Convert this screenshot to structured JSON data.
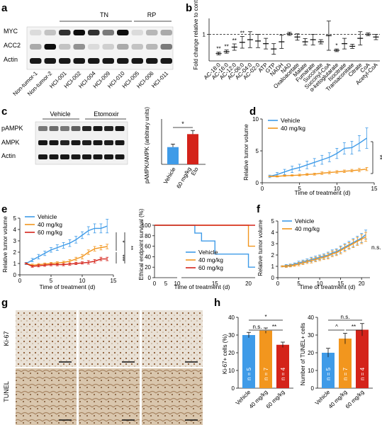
{
  "panels": {
    "a": {
      "letter": "a",
      "groups": [
        "TN",
        "RP"
      ],
      "rows": [
        "MYC",
        "ACC2",
        "Actin"
      ],
      "samples": [
        "Non-tumor-1",
        "Non-tumor-2",
        "HCI-001",
        "HCI-002",
        "HCI-004",
        "HCI-009",
        "HCI-010",
        "HCI-005",
        "HCI-006",
        "HCI-011"
      ]
    },
    "b": {
      "letter": "b",
      "ylabel": "Fold change relative to control",
      "ytick": "1",
      "categories": [
        "AC-18:0",
        "AC-16:0",
        "AC-12:0",
        "AC-06:0",
        "AC-04:0",
        "AC-02:0",
        "ATP",
        "GTP",
        "NADH",
        "NAD",
        "Oxaloacetate",
        "Malate",
        "Fumarate",
        "Succinate",
        "Succinyl-CoA",
        "α-ketoglutarate",
        "Isocitrate",
        "Transaconitate",
        "Citrate",
        "CoA",
        "Acetyl-CoA"
      ],
      "stars": [
        {
          "cat": 0,
          "text": "**"
        },
        {
          "cat": 1,
          "text": "**"
        },
        {
          "cat": 2,
          "text": "**"
        },
        {
          "cat": 3,
          "text": "**"
        },
        {
          "cat": 15,
          "text": "*"
        }
      ]
    },
    "c": {
      "letter": "c",
      "groups": [
        "Vehicle",
        "Etomoxir"
      ],
      "rows": [
        "pAMPK",
        "AMPK",
        "Actin"
      ],
      "ylabel": "pAMPK/AMPK (arbitrary units)",
      "sig": "*",
      "bar_labels": [
        "Vehicle",
        "60 mg/kg Eto"
      ]
    },
    "d": {
      "letter": "d",
      "ylabel": "Relative tumor volume",
      "xlabel": "Time of treatment (d)",
      "sig": "**",
      "legend": [
        "Vehicle",
        "40 mg/kg"
      ]
    },
    "e": {
      "letter": "e",
      "ylabel": "Relative tumor volume",
      "xlabel": "Time of treatment (d)",
      "sig": [
        "*",
        "***",
        "**"
      ],
      "legend": [
        "Vehicle",
        "40 mg/kg",
        "60 mg/kg"
      ],
      "surv_ylabel": "Ethical endpoint survival (%)",
      "surv_xlabel": "Time of treatment (d)"
    },
    "f": {
      "letter": "f",
      "ylabel": "Relative tumor volume",
      "xlabel": "Time of treatment (d)",
      "sig": "n.s.",
      "legend": [
        "Vehicle",
        "40 mg/kg"
      ]
    },
    "g": {
      "letter": "g",
      "rows": [
        "Ki-67",
        "TUNEL"
      ]
    },
    "h": {
      "letter": "h",
      "ki_ylabel": "Ki-67+ cells (%)",
      "tunel_ylabel": "Number of TUNEL+ cells",
      "groups": [
        "Vehicle",
        "40 mg/kg",
        "60 mg/kg"
      ],
      "ki_n": [
        "n = 5",
        "n = 7",
        "n = 4"
      ],
      "tunel_n": [
        "n = 5",
        "n = 7",
        "n = 4"
      ],
      "ki_sig": [
        "n.s.",
        "*",
        "**"
      ],
      "tunel_sig": [
        "^",
        "n.s.",
        "**"
      ]
    }
  },
  "colors": {
    "blue": "#3f9be8",
    "orange": "#f2961e",
    "red": "#d4231a"
  },
  "chart_data": [
    {
      "type": "bar",
      "panel": "b",
      "categories": [
        "AC-18:0",
        "AC-16:0",
        "AC-12:0",
        "AC-06:0",
        "AC-04:0",
        "AC-02:0",
        "ATP",
        "GTP",
        "NADH",
        "NAD",
        "Oxaloacetate",
        "Malate",
        "Fumarate",
        "Succinate",
        "Succinyl-CoA",
        "α-ketoglutarate",
        "Isocitrate",
        "Transaconitate",
        "Citrate",
        "CoA",
        "Acetyl-CoA"
      ],
      "values": [
        0.28,
        0.35,
        0.52,
        0.7,
        0.8,
        0.75,
        0.65,
        0.45,
        0.72,
        1.02,
        0.9,
        0.72,
        0.8,
        0.72,
        0.95,
        0.4,
        0.65,
        0.55,
        0.85,
        1.0,
        0.9
      ],
      "errors": [
        0.05,
        0.06,
        0.12,
        0.22,
        0.3,
        0.25,
        0.2,
        0.2,
        0.25,
        0.06,
        0.12,
        0.12,
        0.2,
        0.08,
        0.55,
        0.05,
        0.2,
        0.08,
        0.25,
        0.05,
        0.1
      ],
      "ylabel": "Fold change relative to control",
      "ylim": [
        0,
        1.6
      ]
    },
    {
      "type": "bar",
      "panel": "c",
      "categories": [
        "Vehicle",
        "60 mg/kg Eto"
      ],
      "values": [
        0.57,
        1.0
      ],
      "errors": [
        0.1,
        0.12
      ],
      "ylabel": "pAMPK/AMPK (arbitrary units)",
      "ylim": [
        0,
        1.5
      ]
    },
    {
      "type": "line",
      "panel": "d",
      "xlabel": "Time of treatment (d)",
      "ylabel": "Relative tumor volume",
      "xlim": [
        0,
        15
      ],
      "ylim": [
        0,
        10
      ],
      "series": [
        {
          "name": "Vehicle",
          "x": [
            1,
            2,
            3,
            4,
            5,
            6,
            7,
            8,
            9,
            10,
            11,
            12,
            13,
            14
          ],
          "y": [
            1,
            1.3,
            1.7,
            2.1,
            2.4,
            2.8,
            3.2,
            3.6,
            4.0,
            4.6,
            5.4,
            5.5,
            6.2,
            7.0
          ],
          "err": [
            0.2,
            0.3,
            0.4,
            0.5,
            0.5,
            0.6,
            0.6,
            0.7,
            0.7,
            0.8,
            0.9,
            1.0,
            1.2,
            1.6
          ]
        },
        {
          "name": "40 mg/kg",
          "x": [
            1,
            2,
            3,
            4,
            5,
            6,
            7,
            8,
            9,
            10,
            11,
            12,
            13,
            14
          ],
          "y": [
            1,
            1,
            1.1,
            1.15,
            1.2,
            1.3,
            1.35,
            1.5,
            1.6,
            1.7,
            1.8,
            1.9,
            2.0,
            2.15
          ],
          "err": [
            0.05,
            0.1,
            0.1,
            0.1,
            0.15,
            0.15,
            0.15,
            0.2,
            0.2,
            0.2,
            0.2,
            0.2,
            0.25,
            0.25
          ]
        }
      ]
    },
    {
      "type": "line",
      "panel": "e-left",
      "xlabel": "Time of treatment (d)",
      "ylabel": "Relative tumor volume",
      "xlim": [
        0,
        15
      ],
      "ylim": [
        0,
        5
      ],
      "series": [
        {
          "name": "Vehicle",
          "x": [
            1,
            2,
            3,
            4,
            5,
            6,
            7,
            8,
            9,
            10,
            11,
            12,
            13,
            14
          ],
          "y": [
            1,
            1.3,
            1.6,
            1.9,
            2.2,
            2.4,
            2.6,
            2.8,
            3.1,
            3.5,
            3.9,
            4.1,
            4.1,
            4.3
          ],
          "err": [
            0.1,
            0.15,
            0.2,
            0.2,
            0.2,
            0.25,
            0.25,
            0.3,
            0.3,
            0.3,
            0.35,
            0.4,
            0.4,
            0.6
          ]
        },
        {
          "name": "40 mg/kg",
          "x": [
            1,
            2,
            3,
            4,
            5,
            6,
            7,
            8,
            9,
            10,
            11,
            12,
            13,
            14
          ],
          "y": [
            1,
            0.85,
            0.9,
            0.95,
            1.0,
            1.05,
            1.1,
            1.2,
            1.4,
            1.6,
            2.0,
            2.3,
            2.4,
            2.5
          ],
          "err": [
            0.05,
            0.1,
            0.1,
            0.1,
            0.1,
            0.1,
            0.1,
            0.15,
            0.15,
            0.2,
            0.2,
            0.2,
            0.2,
            0.2
          ]
        },
        {
          "name": "60 mg/kg",
          "x": [
            1,
            2,
            3,
            4,
            5,
            6,
            7,
            8,
            9,
            10,
            11,
            12,
            13,
            14
          ],
          "y": [
            1,
            0.75,
            0.8,
            0.85,
            0.9,
            0.9,
            0.9,
            0.95,
            1.0,
            1.05,
            1.1,
            1.2,
            1.4,
            1.4
          ],
          "err": [
            0.05,
            0.08,
            0.1,
            0.1,
            0.1,
            0.1,
            0.1,
            0.1,
            0.1,
            0.1,
            0.15,
            0.15,
            0.15,
            0.15
          ]
        }
      ]
    },
    {
      "type": "line",
      "panel": "e-right",
      "xlabel": "Time of treatment (d)",
      "ylabel": "Ethical endpoint survival (%)",
      "xlim": [
        0,
        21
      ],
      "ylim": [
        0,
        100
      ],
      "series": [
        {
          "name": "Vehicle",
          "x": [
            0,
            12,
            12,
            13,
            13,
            15,
            15,
            20,
            20,
            21
          ],
          "y": [
            100,
            100,
            85,
            85,
            70,
            70,
            45,
            45,
            20,
            20
          ]
        },
        {
          "name": "40 mg/kg",
          "x": [
            0,
            20,
            20,
            21
          ],
          "y": [
            100,
            100,
            60,
            60
          ]
        },
        {
          "name": "60 mg/kg",
          "x": [
            0,
            21
          ],
          "y": [
            100,
            100
          ]
        }
      ]
    },
    {
      "type": "line",
      "panel": "f",
      "xlabel": "Time of treatment (d)",
      "ylabel": "Relative tumor volume",
      "xlim": [
        0,
        22
      ],
      "ylim": [
        0,
        5
      ],
      "series": [
        {
          "name": "Vehicle",
          "x": [
            1,
            2,
            3,
            4,
            5,
            6,
            7,
            8,
            9,
            10,
            11,
            12,
            13,
            14,
            15,
            16,
            17,
            18,
            19,
            20,
            21
          ],
          "y": [
            1,
            1.05,
            1.1,
            1.2,
            1.3,
            1.4,
            1.5,
            1.6,
            1.7,
            1.8,
            1.9,
            2.0,
            2.2,
            2.3,
            2.5,
            2.7,
            2.9,
            3.1,
            3.3,
            3.5,
            3.8
          ],
          "err": [
            0.05,
            0.1,
            0.1,
            0.1,
            0.15,
            0.15,
            0.15,
            0.2,
            0.2,
            0.2,
            0.2,
            0.25,
            0.25,
            0.25,
            0.3,
            0.3,
            0.3,
            0.35,
            0.35,
            0.4,
            0.4
          ]
        },
        {
          "name": "40 mg/kg",
          "x": [
            1,
            2,
            3,
            4,
            5,
            6,
            7,
            8,
            9,
            10,
            11,
            12,
            13,
            14,
            15,
            16,
            17,
            18,
            19,
            20,
            21
          ],
          "y": [
            1,
            1.0,
            1.05,
            1.1,
            1.2,
            1.3,
            1.4,
            1.5,
            1.6,
            1.7,
            1.8,
            1.9,
            2.1,
            2.2,
            2.4,
            2.6,
            2.8,
            3.0,
            3.2,
            3.4,
            3.6
          ],
          "err": [
            0.05,
            0.1,
            0.1,
            0.1,
            0.15,
            0.15,
            0.15,
            0.2,
            0.2,
            0.2,
            0.2,
            0.25,
            0.25,
            0.25,
            0.3,
            0.3,
            0.3,
            0.35,
            0.35,
            0.4,
            0.4
          ]
        }
      ]
    },
    {
      "type": "bar",
      "panel": "h-ki67",
      "categories": [
        "Vehicle",
        "40 mg/kg",
        "60 mg/kg"
      ],
      "values": [
        30,
        32.5,
        24.5
      ],
      "errors": [
        1.5,
        1.5,
        1.5
      ],
      "ylabel": "Ki-67+ cells (%)",
      "ylim": [
        0,
        40
      ]
    },
    {
      "type": "bar",
      "panel": "h-tunel",
      "categories": [
        "Vehicle",
        "40 mg/kg",
        "60 mg/kg"
      ],
      "values": [
        20,
        28,
        33
      ],
      "errors": [
        2.5,
        3,
        3.5
      ],
      "ylabel": "Number of TUNEL+ cells",
      "ylim": [
        0,
        40
      ]
    }
  ]
}
